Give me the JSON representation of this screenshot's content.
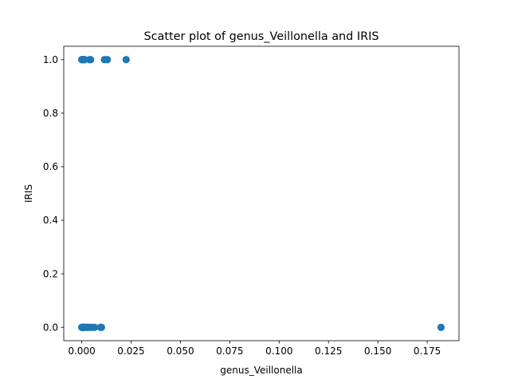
{
  "chart_data": {
    "type": "scatter",
    "title": "Scatter plot of genus_Veillonella and IRIS",
    "xlabel": "genus_Veillonella",
    "ylabel": "IRIS",
    "xlim": [
      -0.0091,
      0.1911
    ],
    "ylim": [
      -0.05,
      1.05
    ],
    "xticks": [
      0.0,
      0.025,
      0.05,
      0.075,
      0.1,
      0.125,
      0.15,
      0.175
    ],
    "xtick_labels": [
      "0.000",
      "0.025",
      "0.050",
      "0.075",
      "0.100",
      "0.125",
      "0.150",
      "0.175"
    ],
    "yticks": [
      0.0,
      0.2,
      0.4,
      0.6,
      0.8,
      1.0
    ],
    "ytick_labels": [
      "0.0",
      "0.2",
      "0.4",
      "0.6",
      "0.8",
      "1.0"
    ],
    "grid": false,
    "marker_color": "#1f77b4",
    "series": [
      {
        "x": [
          0.0,
          0.0002,
          0.0004,
          0.0006,
          0.0008,
          0.001,
          0.0012,
          0.0015,
          0.004,
          0.0045,
          0.0115,
          0.013,
          0.0225,
          0.0,
          0.0002,
          0.0004,
          0.0006,
          0.0008,
          0.001,
          0.0013,
          0.0018,
          0.0025,
          0.003,
          0.004,
          0.005,
          0.0065,
          0.0095,
          0.01,
          0.182
        ],
        "y": [
          1,
          1,
          1,
          1,
          1,
          1,
          1,
          1,
          1,
          1,
          1,
          1,
          1,
          0,
          0,
          0,
          0,
          0,
          0,
          0,
          0,
          0,
          0,
          0,
          0,
          0,
          0,
          0,
          0
        ]
      }
    ]
  }
}
